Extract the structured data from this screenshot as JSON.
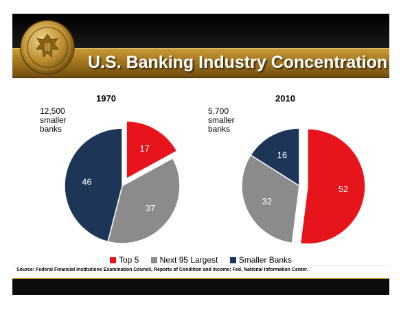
{
  "header": {
    "title": "U.S. Banking Industry Concentration",
    "seal_lettering": "BOARD OF GOVERNORS OF THE FEDERAL RESERVE SYSTEM"
  },
  "colors": {
    "top5": "#e8141b",
    "next95": "#8b8b8b",
    "smaller": "#1d3557",
    "gold": "#b88a2c"
  },
  "chart_data": [
    {
      "type": "pie",
      "title": "1970",
      "side_note": [
        "12,500",
        "smaller",
        "banks"
      ],
      "categories": [
        "Top 5",
        "Next 95 Largest",
        "Smaller Banks"
      ],
      "values": [
        17,
        37,
        46
      ],
      "exploded": "Top 5"
    },
    {
      "type": "pie",
      "title": "2010",
      "side_note": [
        "5,700",
        "smaller",
        "banks"
      ],
      "categories": [
        "Top 5",
        "Next 95 Largest",
        "Smaller Banks"
      ],
      "values": [
        52,
        32,
        16
      ],
      "exploded": "Top 5"
    }
  ],
  "legend": {
    "placement": "bottom",
    "items": [
      "Top 5",
      "Next 95 Largest",
      "Smaller Banks"
    ]
  },
  "footer": {
    "source": "Source: Federal Financial Institutions Examination Council, Reports of Condition and Income; Fed, National Information Center."
  }
}
